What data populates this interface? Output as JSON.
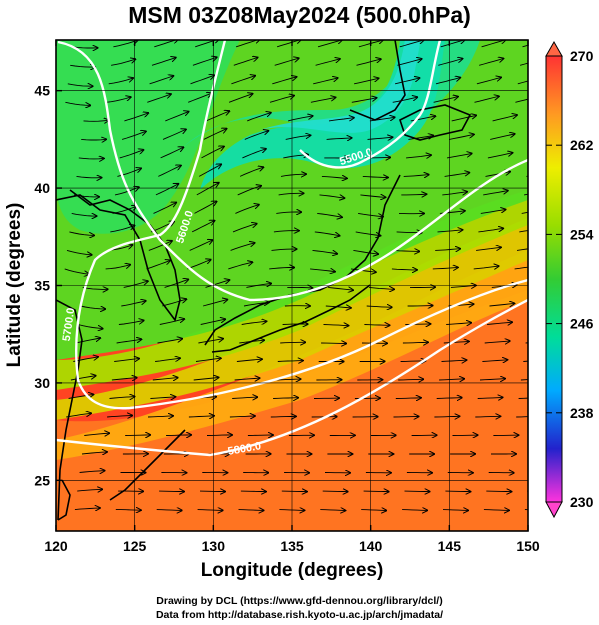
{
  "title": "MSM 03Z08May2024 (500.0hPa)",
  "axes": {
    "xlabel": "Longitude (degrees)",
    "ylabel": "Latitude  (degrees)",
    "xticks": [
      120,
      125,
      130,
      135,
      140,
      145,
      150
    ],
    "yticks": [
      25,
      30,
      35,
      40,
      45
    ],
    "xlim": [
      120,
      150
    ],
    "ylim": [
      22.4,
      47.6
    ]
  },
  "colorbar": {
    "ticks": [
      230,
      238,
      246,
      254,
      262,
      270
    ],
    "range": [
      230,
      270
    ],
    "colors": [
      "#ff33dd",
      "#2222cc",
      "#00aaff",
      "#00dd99",
      "#33cc33",
      "#99dd00",
      "#eeee00",
      "#ff9922",
      "#ff3333"
    ]
  },
  "contours": {
    "labels": [
      "5500.0",
      "5600.0",
      "5700.0",
      "5800.0"
    ]
  },
  "credit": {
    "line1": "Drawing by DCL (https://www.gfd-dennou.org/library/dcl/)",
    "line2": "Data from http://database.rish.kyoto-u.ac.jp/arch/jmadata/"
  },
  "colors": {
    "contour": "#ffffff",
    "coast": "#000000",
    "streamline": "#000000"
  }
}
